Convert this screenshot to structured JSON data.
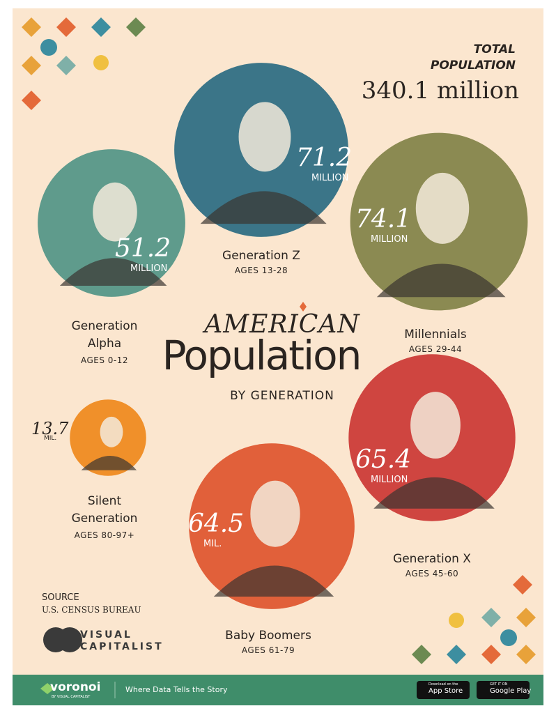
{
  "total": {
    "label": "TOTAL POPULATION",
    "value": "340.1 million"
  },
  "title": {
    "line1": "AMERICAN",
    "line2": "Population",
    "line3": "BY GENERATION"
  },
  "generations": [
    {
      "name": "Generation Z",
      "ages": "AGES 13-28",
      "value": 71.2,
      "unit": "MILLION"
    },
    {
      "name": "Millennials",
      "ages": "AGES 29-44",
      "value": 74.1,
      "unit": "MILLION"
    },
    {
      "name": "Generation Alpha",
      "ages": "AGES 0-12",
      "value": 51.2,
      "unit": "MILLION"
    },
    {
      "name": "Silent Generation",
      "ages": "AGES 80-97+",
      "value": 13.7,
      "unit": "MIL."
    },
    {
      "name": "Generation X",
      "ages": "AGES 45-60",
      "value": 65.4,
      "unit": "MILLION"
    },
    {
      "name": "Baby Boomers",
      "ages": "AGES 61-79",
      "value": 64.5,
      "unit": "MIL."
    }
  ],
  "source": {
    "label": "SOURCE",
    "text": "U.S. CENSUS BUREAU"
  },
  "brand": {
    "line1": "VISUAL",
    "line2": "CAPITALIST"
  },
  "footer": {
    "logo": "voronoi",
    "logo_sub": "BY VISUAL CAPITALIST",
    "tagline": "Where Data Tells the Story",
    "app_store_small": "Download on the",
    "app_store": "App Store",
    "google_small": "GET IT ON",
    "google": "Google Play"
  }
}
